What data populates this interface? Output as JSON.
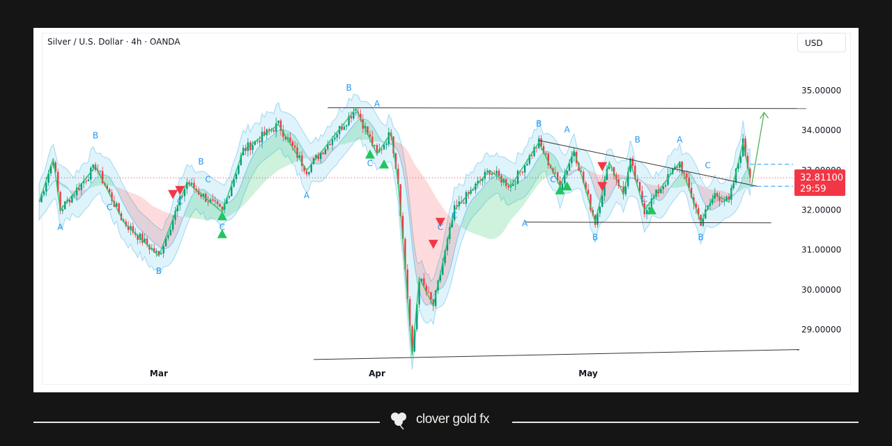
{
  "header": {
    "symbol_title": "Silver / U.S. Dollar · 4h · OANDA",
    "currency_button": "USD"
  },
  "price_label": {
    "value": "32.81100",
    "countdown": "29:59",
    "color": "#f23645"
  },
  "footer": {
    "brand": "clover gold fx",
    "logo_icon": "clover-icon"
  },
  "colors": {
    "up": "#089981",
    "down": "#f23645",
    "zigzag": "#22c55e",
    "label": "#2196f3",
    "band": "#9fd8f0"
  },
  "chart_data": {
    "type": "candlestick",
    "title": "Silver / U.S. Dollar · 4h · OANDA",
    "x_ticks": [
      {
        "label": "Mar",
        "date": "2024-03-01"
      },
      {
        "label": "Apr",
        "date": "2024-04-01"
      },
      {
        "label": "May",
        "date": "2024-05-01"
      }
    ],
    "y_ticks": [
      "35.00000",
      "34.00000",
      "33.00000",
      "32.00000",
      "31.00000",
      "30.00000",
      "29.00000"
    ],
    "ylim": [
      28.0,
      36.0
    ],
    "xlim": [
      "2024-02-13",
      "2024-06-05"
    ],
    "last_price": 32.811,
    "swing_path": [
      [
        "2024-02-13",
        32.2
      ],
      [
        "2024-02-15",
        33.3
      ],
      [
        "2024-02-16",
        32.0
      ],
      [
        "2024-02-21",
        33.1
      ],
      [
        "2024-02-25",
        31.7
      ],
      [
        "2024-03-01",
        30.85
      ],
      [
        "2024-03-05",
        32.7
      ],
      [
        "2024-03-10",
        31.95
      ],
      [
        "2024-03-13",
        33.5
      ],
      [
        "2024-03-18",
        34.15
      ],
      [
        "2024-03-22",
        33.0
      ],
      [
        "2024-03-29",
        34.55
      ],
      [
        "2024-04-01",
        33.4
      ],
      [
        "2024-04-03",
        33.95
      ],
      [
        "2024-04-04",
        32.7
      ],
      [
        "2024-04-06",
        28.35
      ],
      [
        "2024-04-07",
        30.3
      ],
      [
        "2024-04-09",
        29.6
      ],
      [
        "2024-04-12",
        32.0
      ],
      [
        "2024-04-17",
        33.0
      ],
      [
        "2024-04-20",
        32.6
      ],
      [
        "2024-04-24",
        33.7
      ],
      [
        "2024-04-27",
        32.6
      ],
      [
        "2024-04-29",
        33.5
      ],
      [
        "2024-05-02",
        31.7
      ],
      [
        "2024-05-04",
        33.2
      ],
      [
        "2024-05-06",
        32.4
      ],
      [
        "2024-05-07",
        33.2
      ],
      [
        "2024-05-09",
        32.0
      ],
      [
        "2024-05-14",
        33.2
      ],
      [
        "2024-05-17",
        31.7
      ],
      [
        "2024-05-19",
        32.4
      ],
      [
        "2024-05-21",
        32.2
      ],
      [
        "2024-05-23",
        33.7
      ],
      [
        "2024-05-24",
        32.81
      ]
    ],
    "trend_lines": [
      {
        "from": [
          "2024-03-25",
          34.57
        ],
        "to": [
          "2024-06-01",
          34.55
        ]
      },
      {
        "from": [
          "2024-03-23",
          28.25
        ],
        "to": [
          "2024-05-31",
          28.5
        ]
      },
      {
        "from": [
          "2024-04-22",
          31.7
        ],
        "to": [
          "2024-05-27",
          31.68
        ]
      },
      {
        "from": [
          "2024-04-24",
          33.75
        ],
        "to": [
          "2024-05-25",
          32.6
        ]
      }
    ],
    "projection_arrow": {
      "from": [
        "2024-05-24",
        32.6
      ],
      "to": [
        "2024-05-26",
        34.45
      ]
    },
    "dashed_levels": [
      33.15,
      32.6
    ],
    "wave_labels": [
      {
        "t": "B",
        "d": "2024-02-21",
        "p": 33.8
      },
      {
        "t": "C",
        "d": "2024-02-23",
        "p": 32.0
      },
      {
        "t": "A",
        "d": "2024-02-16",
        "p": 31.5
      },
      {
        "t": "B",
        "d": "2024-03-01",
        "p": 30.4
      },
      {
        "t": "C",
        "d": "2024-03-04",
        "p": 32.15
      },
      {
        "t": "C",
        "d": "2024-03-08",
        "p": 32.7
      },
      {
        "t": "B",
        "d": "2024-03-07",
        "p": 33.15
      },
      {
        "t": "C",
        "d": "2024-03-10",
        "p": 31.5
      },
      {
        "t": "A",
        "d": "2024-03-22",
        "p": 32.3
      },
      {
        "t": "B",
        "d": "2024-03-28",
        "p": 35.0
      },
      {
        "t": "A",
        "d": "2024-04-01",
        "p": 34.6
      },
      {
        "t": "C",
        "d": "2024-03-31",
        "p": 33.1
      },
      {
        "t": "C",
        "d": "2024-04-10",
        "p": 31.5
      },
      {
        "t": "C",
        "d": "2024-04-12",
        "p": 31.8
      },
      {
        "t": "A",
        "d": "2024-04-22",
        "p": 31.6
      },
      {
        "t": "B",
        "d": "2024-04-24",
        "p": 34.1
      },
      {
        "t": "A",
        "d": "2024-04-28",
        "p": 33.95
      },
      {
        "t": "C",
        "d": "2024-04-26",
        "p": 32.7
      },
      {
        "t": "B",
        "d": "2024-05-02",
        "p": 31.25
      },
      {
        "t": "B",
        "d": "2024-05-08",
        "p": 33.7
      },
      {
        "t": "C",
        "d": "2024-05-09",
        "p": 32.2
      },
      {
        "t": "A",
        "d": "2024-05-14",
        "p": 33.7
      },
      {
        "t": "C",
        "d": "2024-05-18",
        "p": 33.05
      },
      {
        "t": "B",
        "d": "2024-05-17",
        "p": 31.25
      }
    ],
    "signals": [
      {
        "type": "sell",
        "d": "2024-03-03",
        "p": 32.4
      },
      {
        "type": "sell",
        "d": "2024-03-04",
        "p": 32.5
      },
      {
        "type": "buy",
        "d": "2024-03-10",
        "p": 31.85
      },
      {
        "type": "buy",
        "d": "2024-03-10",
        "p": 31.4
      },
      {
        "type": "buy",
        "d": "2024-03-31",
        "p": 33.4
      },
      {
        "type": "buy",
        "d": "2024-04-02",
        "p": 33.15
      },
      {
        "type": "sell",
        "d": "2024-04-09",
        "p": 31.15
      },
      {
        "type": "sell",
        "d": "2024-04-10",
        "p": 31.7
      },
      {
        "type": "buy",
        "d": "2024-04-27",
        "p": 32.5
      },
      {
        "type": "buy",
        "d": "2024-04-28",
        "p": 32.6
      },
      {
        "type": "sell",
        "d": "2024-05-03",
        "p": 33.1
      },
      {
        "type": "sell",
        "d": "2024-05-03",
        "p": 32.6
      },
      {
        "type": "buy",
        "d": "2024-05-10",
        "p": 32.0
      }
    ]
  }
}
